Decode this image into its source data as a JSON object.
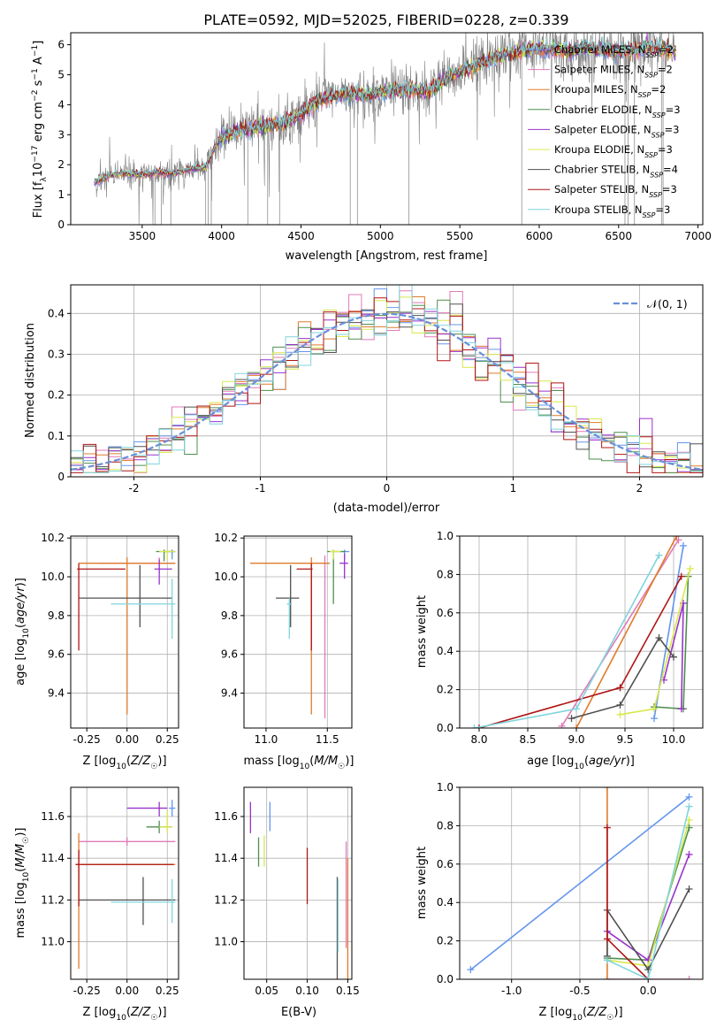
{
  "figure_title": "PLATE=0592, MJD=52025, FIBERID=0228, z=0.339",
  "colors": {
    "chabrier_miles": "#6495ed",
    "salpeter_miles": "#e07ab9",
    "kroupa_miles": "#e07b2a",
    "chabrier_elodie": "#4f8f4f",
    "salpeter_elodie": "#9932cc",
    "kroupa_elodie": "#d8e84a",
    "chabrier_stelib": "#505050",
    "salpeter_stelib": "#b01515",
    "kroupa_stelib": "#7fd4dc",
    "data": "#808080",
    "grid": "#b0b0b0",
    "normal": "#6a8fd8"
  },
  "chart_data": [
    {
      "type": "line",
      "id": "spectrum",
      "xlabel": "wavelength [Angstrom, rest frame]",
      "ylabel": "Flux [f_λ 10^-17 erg cm^-2 s^-1 A^-1]",
      "xlim": [
        3050,
        7030
      ],
      "ylim": [
        0,
        6.4
      ],
      "xticks": [
        3500,
        4000,
        4500,
        5000,
        5500,
        6000,
        6500,
        7000
      ],
      "yticks": [
        0,
        1,
        2,
        3,
        4,
        5,
        6
      ],
      "grid": false,
      "legend_position": "right",
      "data_range": [
        3200,
        6860
      ],
      "continuum_nodes": [
        [
          3200,
          1.4
        ],
        [
          3300,
          1.65
        ],
        [
          3400,
          1.7
        ],
        [
          3500,
          1.65
        ],
        [
          3600,
          1.75
        ],
        [
          3700,
          1.7
        ],
        [
          3800,
          1.85
        ],
        [
          3900,
          1.9
        ],
        [
          3960,
          2.6
        ],
        [
          4000,
          2.9
        ],
        [
          4100,
          3.1
        ],
        [
          4200,
          3.2
        ],
        [
          4300,
          3.3
        ],
        [
          4400,
          3.4
        ],
        [
          4500,
          3.7
        ],
        [
          4600,
          4.1
        ],
        [
          4700,
          4.3
        ],
        [
          4800,
          4.4
        ],
        [
          4900,
          4.3
        ],
        [
          5000,
          4.4
        ],
        [
          5100,
          4.5
        ],
        [
          5200,
          4.5
        ],
        [
          5300,
          4.5
        ],
        [
          5400,
          4.8
        ],
        [
          5500,
          5.1
        ],
        [
          5600,
          5.3
        ],
        [
          5700,
          5.5
        ],
        [
          5800,
          5.7
        ],
        [
          5900,
          5.8
        ],
        [
          6000,
          5.9
        ],
        [
          6100,
          5.8
        ],
        [
          6200,
          5.8
        ],
        [
          6300,
          5.9
        ],
        [
          6400,
          5.8
        ],
        [
          6500,
          5.8
        ],
        [
          6600,
          5.85
        ],
        [
          6700,
          5.9
        ],
        [
          6860,
          5.8
        ]
      ],
      "series": [
        {
          "name": "Chabrier MILES, N_SSP=2",
          "color_key": "chabrier_miles"
        },
        {
          "name": "Salpeter MILES, N_SSP=2",
          "color_key": "salpeter_miles"
        },
        {
          "name": "Kroupa MILES, N_SSP=2",
          "color_key": "kroupa_miles"
        },
        {
          "name": "Chabrier ELODIE, N_SSP=3",
          "color_key": "chabrier_elodie"
        },
        {
          "name": "Salpeter ELODIE, N_SSP=3",
          "color_key": "salpeter_elodie"
        },
        {
          "name": "Kroupa ELODIE, N_SSP=3",
          "color_key": "kroupa_elodie"
        },
        {
          "name": "Chabrier STELIB, N_SSP=4",
          "color_key": "chabrier_stelib"
        },
        {
          "name": "Salpeter STELIB, N_SSP=3",
          "color_key": "salpeter_stelib"
        },
        {
          "name": "Kroupa STELIB, N_SSP=3",
          "color_key": "kroupa_stelib"
        }
      ]
    },
    {
      "type": "histogram",
      "id": "residuals",
      "xlabel": "(data-model)/error",
      "ylabel": "Normed distribution",
      "xlim": [
        -2.5,
        2.5
      ],
      "ylim": [
        0,
        0.47
      ],
      "xticks": [
        -2,
        -1,
        0,
        1,
        2
      ],
      "yticks": [
        0.0,
        0.1,
        0.2,
        0.3,
        0.4
      ],
      "grid": true,
      "bin_width": 0.1,
      "legend": "𝒩(0, 1)",
      "legend_position": "top-right",
      "normal_curve": {
        "mean": 0,
        "sigma": 1
      }
    },
    {
      "type": "errorbar",
      "id": "age_vs_Z",
      "xlabel": "Z [log10(Z/Z☉)]",
      "ylabel": "age [log10(age/yr)]",
      "xlim": [
        -0.35,
        0.32
      ],
      "ylim": [
        9.22,
        10.21
      ],
      "xticks": [
        -0.25,
        0.0,
        0.25
      ],
      "yticks": [
        9.4,
        9.6,
        9.8,
        10.0,
        10.2
      ],
      "grid": true,
      "points": [
        {
          "color_key": "chabrier_miles",
          "x": 0.28,
          "xerr": [
            0.05,
            0.02
          ],
          "y": 10.13,
          "yerr": [
            0.04,
            0.01
          ]
        },
        {
          "color_key": "salpeter_miles",
          "x": 0.2,
          "xerr": [
            0.38,
            0.1
          ],
          "y": 10.07,
          "yerr": [
            0.05,
            0.03
          ]
        },
        {
          "color_key": "kroupa_miles",
          "x": 0.0,
          "xerr": [
            0.3,
            0.3
          ],
          "y": 10.07,
          "yerr": [
            0.78,
            0.03
          ]
        },
        {
          "color_key": "chabrier_elodie",
          "x": 0.23,
          "xerr": [
            0.05,
            0.07
          ],
          "y": 10.13,
          "yerr": [
            0.05,
            0.01
          ]
        },
        {
          "color_key": "salpeter_elodie",
          "x": 0.2,
          "xerr": [
            0.03,
            0.08
          ],
          "y": 10.04,
          "yerr": [
            0.08,
            0.05
          ]
        },
        {
          "color_key": "kroupa_elodie",
          "x": 0.25,
          "xerr": [
            0.05,
            0.05
          ],
          "y": 10.13,
          "yerr": [
            0.04,
            0.01
          ]
        },
        {
          "color_key": "chabrier_stelib",
          "x": 0.08,
          "xerr": [
            0.38,
            0.2
          ],
          "y": 9.89,
          "yerr": [
            0.15,
            0.17
          ]
        },
        {
          "color_key": "salpeter_stelib",
          "x": -0.3,
          "xerr": [
            0.01,
            0.29
          ],
          "y": 10.04,
          "yerr": [
            0.42,
            0.03
          ]
        },
        {
          "color_key": "kroupa_stelib",
          "x": 0.28,
          "xerr": [
            0.38,
            0.02
          ],
          "y": 9.86,
          "yerr": [
            0.18,
            0.13
          ]
        }
      ]
    },
    {
      "type": "errorbar",
      "id": "age_vs_mass",
      "xlabel": "mass [log10(M/M☉)]",
      "ylabel": "",
      "xlim": [
        10.82,
        11.7
      ],
      "ylim": [
        9.22,
        10.21
      ],
      "xticks": [
        11.0,
        11.5
      ],
      "yticks": [
        9.4,
        9.6,
        9.8,
        10.0,
        10.2
      ],
      "grid": true,
      "points": [
        {
          "color_key": "chabrier_miles",
          "x": 11.64,
          "xerr": [
            0.04,
            0.04
          ],
          "y": 10.13,
          "yerr": [
            0.04,
            0.01
          ]
        },
        {
          "color_key": "salpeter_miles",
          "x": 11.48,
          "xerr": [
            0.02,
            0.02
          ],
          "y": 10.07,
          "yerr": [
            0.8,
            0.04
          ]
        },
        {
          "color_key": "kroupa_miles",
          "x": 11.37,
          "xerr": [
            0.5,
            0.15
          ],
          "y": 10.07,
          "yerr": [
            0.78,
            0.03
          ]
        },
        {
          "color_key": "chabrier_elodie",
          "x": 11.55,
          "xerr": [
            0.05,
            0.1
          ],
          "y": 10.13,
          "yerr": [
            0.27,
            0.01
          ]
        },
        {
          "color_key": "salpeter_elodie",
          "x": 11.64,
          "xerr": [
            0.04,
            0.03
          ],
          "y": 10.07,
          "yerr": [
            0.08,
            0.05
          ]
        },
        {
          "color_key": "kroupa_elodie",
          "x": 11.55,
          "xerr": [
            0.03,
            0.06
          ],
          "y": 10.13,
          "yerr": [
            0.04,
            0.01
          ]
        },
        {
          "color_key": "chabrier_stelib",
          "x": 11.2,
          "xerr": [
            0.12,
            0.07
          ],
          "y": 9.89,
          "yerr": [
            0.15,
            0.17
          ]
        },
        {
          "color_key": "salpeter_stelib",
          "x": 11.37,
          "xerr": [
            0.12,
            0.01
          ],
          "y": 10.04,
          "yerr": [
            0.42,
            0.03
          ]
        },
        {
          "color_key": "kroupa_stelib",
          "x": 11.19,
          "xerr": [
            0.02,
            0.02
          ],
          "y": 9.86,
          "yerr": [
            0.18,
            0.03
          ]
        }
      ]
    },
    {
      "type": "line",
      "id": "weight_vs_age",
      "xlabel": "age [log10(age/yr)]",
      "ylabel": "mass weight",
      "xlim": [
        7.8,
        10.3
      ],
      "ylim": [
        0,
        1.0
      ],
      "xticks": [
        8.0,
        8.5,
        9.0,
        9.5,
        10.0
      ],
      "yticks": [
        0.0,
        0.2,
        0.4,
        0.6,
        0.8,
        1.0
      ],
      "grid": true,
      "series": [
        {
          "color_key": "chabrier_miles",
          "x": [
            9.8,
            10.1
          ],
          "y": [
            0.05,
            0.95
          ]
        },
        {
          "color_key": "salpeter_miles",
          "x": [
            8.85,
            10.05
          ],
          "y": [
            0.01,
            0.98
          ]
        },
        {
          "color_key": "kroupa_miles",
          "x": [
            9.0,
            10.03
          ],
          "y": [
            0.0,
            1.0
          ]
        },
        {
          "color_key": "chabrier_elodie",
          "x": [
            9.8,
            10.1,
            10.15
          ],
          "y": [
            0.11,
            0.1,
            0.79
          ]
        },
        {
          "color_key": "salpeter_elodie",
          "x": [
            9.9,
            10.1,
            10.08
          ],
          "y": [
            0.25,
            0.65,
            0.1
          ]
        },
        {
          "color_key": "kroupa_elodie",
          "x": [
            9.45,
            9.8,
            10.17
          ],
          "y": [
            0.07,
            0.1,
            0.83
          ]
        },
        {
          "color_key": "chabrier_stelib",
          "x": [
            8.95,
            9.45,
            9.85,
            10.0
          ],
          "y": [
            0.05,
            0.12,
            0.47,
            0.37
          ]
        },
        {
          "color_key": "salpeter_stelib",
          "x": [
            8.0,
            9.45,
            10.08
          ],
          "y": [
            0.0,
            0.21,
            0.79
          ]
        },
        {
          "color_key": "kroupa_stelib",
          "x": [
            7.95,
            9.0,
            9.85
          ],
          "y": [
            0.0,
            0.1,
            0.9
          ]
        }
      ]
    },
    {
      "type": "errorbar",
      "id": "mass_vs_Z",
      "xlabel": "Z [log10(Z/Z☉)]",
      "ylabel": "mass [log10(M/M☉)]",
      "xlim": [
        -0.35,
        0.32
      ],
      "ylim": [
        10.82,
        11.74
      ],
      "xticks": [
        -0.25,
        0.0,
        0.25
      ],
      "yticks": [
        11.0,
        11.2,
        11.4,
        11.6
      ],
      "grid": true,
      "points": [
        {
          "color_key": "chabrier_miles",
          "x": 0.28,
          "xerr": [
            0.02,
            0.02
          ],
          "y": 11.64,
          "yerr": [
            0.04,
            0.04
          ]
        },
        {
          "color_key": "salpeter_miles",
          "x": 0.0,
          "xerr": [
            0.3,
            0.3
          ],
          "y": 11.48,
          "yerr": [
            0.02,
            0.02
          ]
        },
        {
          "color_key": "kroupa_miles",
          "x": -0.3,
          "xerr": [
            0.02,
            0.6
          ],
          "y": 11.37,
          "yerr": [
            0.5,
            0.15
          ]
        },
        {
          "color_key": "chabrier_elodie",
          "x": 0.2,
          "xerr": [
            0.08,
            0.08
          ],
          "y": 11.55,
          "yerr": [
            0.03,
            0.03
          ]
        },
        {
          "color_key": "salpeter_elodie",
          "x": 0.2,
          "xerr": [
            0.2,
            0.05
          ],
          "y": 11.64,
          "yerr": [
            0.04,
            0.03
          ]
        },
        {
          "color_key": "kroupa_elodie",
          "x": 0.25,
          "xerr": [
            0.05,
            0.03
          ],
          "y": 11.55,
          "yerr": [
            0.03,
            0.08
          ]
        },
        {
          "color_key": "chabrier_stelib",
          "x": 0.1,
          "xerr": [
            0.4,
            0.2
          ],
          "y": 11.2,
          "yerr": [
            0.12,
            0.11
          ]
        },
        {
          "color_key": "salpeter_stelib",
          "x": -0.3,
          "xerr": [
            0.02,
            0.59
          ],
          "y": 11.37,
          "yerr": [
            0.2,
            0.07
          ]
        },
        {
          "color_key": "kroupa_stelib",
          "x": 0.28,
          "xerr": [
            0.38,
            0.02
          ],
          "y": 11.19,
          "yerr": [
            0.1,
            0.11
          ]
        }
      ]
    },
    {
      "type": "errorbar",
      "id": "mass_vs_EBV",
      "xlabel": "E(B-V)",
      "ylabel": "",
      "xlim": [
        0.022,
        0.155
      ],
      "ylim": [
        10.82,
        11.74
      ],
      "xticks": [
        0.05,
        0.1,
        0.15
      ],
      "yticks": [
        11.0,
        11.2,
        11.4,
        11.6
      ],
      "grid": true,
      "points": [
        {
          "color_key": "chabrier_miles",
          "x": 0.054,
          "yerr": [
            0.07,
            0.07
          ],
          "y": 11.6
        },
        {
          "color_key": "salpeter_miles",
          "x": 0.148,
          "yerr": [
            0.4,
            0.11
          ],
          "y": 11.37
        },
        {
          "color_key": "kroupa_miles",
          "x": 0.15,
          "yerr": [
            0.55,
            0.04
          ],
          "y": 11.36
        },
        {
          "color_key": "chabrier_elodie",
          "x": 0.04,
          "yerr": [
            0.09,
            0.05
          ],
          "y": 11.45
        },
        {
          "color_key": "salpeter_elodie",
          "x": 0.03,
          "yerr": [
            0.08,
            0.07
          ],
          "y": 11.6
        },
        {
          "color_key": "kroupa_elodie",
          "x": 0.047,
          "yerr": [
            0.09,
            0.06
          ],
          "y": 11.45
        },
        {
          "color_key": "chabrier_stelib",
          "x": 0.137,
          "yerr": [
            0.34,
            0.21
          ],
          "y": 11.1
        },
        {
          "color_key": "salpeter_stelib",
          "x": 0.1,
          "yerr": [
            0.15,
            0.12
          ],
          "y": 11.33
        },
        {
          "color_key": "kroupa_stelib",
          "x": 0.138,
          "yerr": [
            0.2,
            0.15
          ],
          "y": 11.15
        }
      ]
    },
    {
      "type": "line",
      "id": "weight_vs_Z",
      "xlabel": "Z [log10(Z/Z☉)]",
      "ylabel": "mass weight",
      "xlim": [
        -1.38,
        0.4
      ],
      "ylim": [
        0,
        1.0
      ],
      "xticks": [
        -1.0,
        -0.5,
        0.0
      ],
      "yticks": [
        0.0,
        0.2,
        0.4,
        0.6,
        0.8,
        1.0
      ],
      "grid": true,
      "series": [
        {
          "color_key": "chabrier_miles",
          "x": [
            -1.3,
            0.3
          ],
          "y": [
            0.05,
            0.95
          ]
        },
        {
          "color_key": "salpeter_miles",
          "x": [
            -0.3,
            0.3
          ],
          "y": [
            0.0,
            0.0
          ]
        },
        {
          "color_key": "kroupa_miles",
          "x": [
            -0.3,
            -0.3
          ],
          "y": [
            0.0,
            1.0
          ]
        },
        {
          "color_key": "chabrier_elodie",
          "x": [
            -0.3,
            0.0,
            0.3
          ],
          "y": [
            0.11,
            0.1,
            0.79
          ]
        },
        {
          "color_key": "salpeter_elodie",
          "x": [
            -0.3,
            0.0,
            0.3
          ],
          "y": [
            0.25,
            0.1,
            0.65
          ]
        },
        {
          "color_key": "kroupa_elodie",
          "x": [
            -0.3,
            0.0,
            0.3
          ],
          "y": [
            0.1,
            0.07,
            0.83
          ]
        },
        {
          "color_key": "chabrier_stelib",
          "x": [
            -0.3,
            -0.3,
            0.0,
            0.3
          ],
          "y": [
            0.12,
            0.36,
            0.05,
            0.47
          ]
        },
        {
          "color_key": "salpeter_stelib",
          "x": [
            -0.3,
            -0.3,
            0.0
          ],
          "y": [
            0.79,
            0.21,
            0.0
          ]
        },
        {
          "color_key": "kroupa_stelib",
          "x": [
            -0.3,
            0.0,
            0.3
          ],
          "y": [
            0.1,
            0.0,
            0.9
          ]
        }
      ]
    }
  ]
}
